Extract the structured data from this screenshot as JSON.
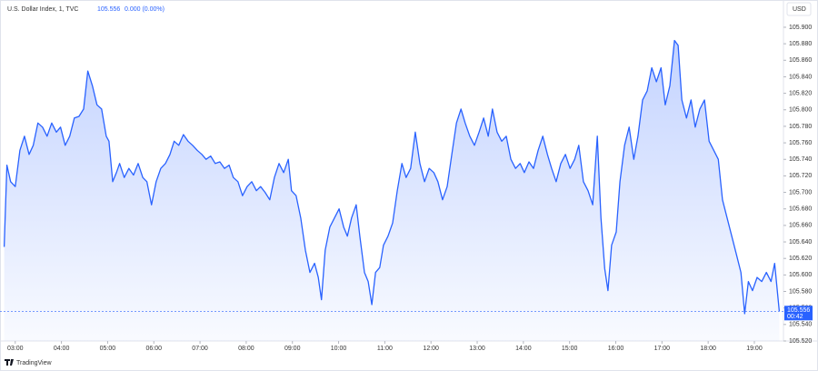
{
  "header": {
    "symbol": "U.S. Dollar Index, 1, TVC",
    "price": 105.556,
    "change": "0.000 (0.00%)",
    "currency": "USD",
    "countdown": "00:42",
    "brand": "TradingView"
  },
  "chart_data": {
    "type": "area",
    "color": "#2962ff",
    "grid": false,
    "xlim": [
      2.67,
      19.63
    ],
    "ylim": [
      105.52,
      105.933
    ],
    "xticks": [
      {
        "value": 3,
        "label": "03:00"
      },
      {
        "value": 4,
        "label": "04:00"
      },
      {
        "value": 5,
        "label": "05:00"
      },
      {
        "value": 6,
        "label": "06:00"
      },
      {
        "value": 7,
        "label": "07:00"
      },
      {
        "value": 8,
        "label": "08:00"
      },
      {
        "value": 9,
        "label": "09:00"
      },
      {
        "value": 10,
        "label": "10:00"
      },
      {
        "value": 11,
        "label": "11:00"
      },
      {
        "value": 12,
        "label": "12:00"
      },
      {
        "value": 13,
        "label": "13:00"
      },
      {
        "value": 14,
        "label": "14:00"
      },
      {
        "value": 15,
        "label": "15:00"
      },
      {
        "value": 16,
        "label": "16:00"
      },
      {
        "value": 17,
        "label": "17:00"
      },
      {
        "value": 18,
        "label": "18:00"
      },
      {
        "value": 19,
        "label": "19:00"
      }
    ],
    "yticks": [
      {
        "value": 105.52,
        "label": "105.520"
      },
      {
        "value": 105.54,
        "label": "105.540"
      },
      {
        "value": 105.56,
        "label": "105.560"
      },
      {
        "value": 105.58,
        "label": "105.580"
      },
      {
        "value": 105.6,
        "label": "105.600"
      },
      {
        "value": 105.62,
        "label": "105.620"
      },
      {
        "value": 105.64,
        "label": "105.640"
      },
      {
        "value": 105.66,
        "label": "105.660"
      },
      {
        "value": 105.68,
        "label": "105.680"
      },
      {
        "value": 105.7,
        "label": "105.700"
      },
      {
        "value": 105.72,
        "label": "105.720"
      },
      {
        "value": 105.74,
        "label": "105.740"
      },
      {
        "value": 105.76,
        "label": "105.760"
      },
      {
        "value": 105.78,
        "label": "105.780"
      },
      {
        "value": 105.8,
        "label": "105.800"
      },
      {
        "value": 105.82,
        "label": "105.820"
      },
      {
        "value": 105.84,
        "label": "105.840"
      },
      {
        "value": 105.86,
        "label": "105.860"
      },
      {
        "value": 105.88,
        "label": "105.880"
      },
      {
        "value": 105.9,
        "label": "105.900"
      }
    ],
    "x": [
      2.76,
      2.82,
      2.9,
      3.0,
      3.1,
      3.2,
      3.3,
      3.39,
      3.49,
      3.59,
      3.69,
      3.79,
      3.89,
      3.98,
      4.08,
      4.18,
      4.28,
      4.38,
      4.48,
      4.57,
      4.67,
      4.77,
      4.87,
      4.97,
      5.03,
      5.11,
      5.19,
      5.26,
      5.36,
      5.46,
      5.56,
      5.66,
      5.76,
      5.85,
      5.95,
      6.05,
      6.15,
      6.25,
      6.35,
      6.44,
      6.54,
      6.64,
      6.74,
      6.84,
      6.94,
      7.04,
      7.13,
      7.23,
      7.33,
      7.43,
      7.53,
      7.63,
      7.72,
      7.82,
      7.92,
      8.02,
      8.12,
      8.22,
      8.31,
      8.41,
      8.51,
      8.61,
      8.71,
      8.81,
      8.91,
      8.98,
      9.08,
      9.18,
      9.28,
      9.38,
      9.48,
      9.56,
      9.63,
      9.71,
      9.81,
      9.91,
      10.01,
      10.11,
      10.19,
      10.28,
      10.38,
      10.46,
      10.56,
      10.64,
      10.72,
      10.8,
      10.89,
      10.97,
      11.07,
      11.17,
      11.27,
      11.37,
      11.46,
      11.56,
      11.66,
      11.76,
      11.86,
      11.96,
      12.06,
      12.15,
      12.25,
      12.35,
      12.45,
      12.55,
      12.65,
      12.74,
      12.84,
      12.94,
      13.04,
      13.14,
      13.24,
      13.33,
      13.43,
      13.53,
      13.63,
      13.73,
      13.83,
      13.93,
      14.02,
      14.12,
      14.22,
      14.32,
      14.42,
      14.52,
      14.61,
      14.71,
      14.81,
      14.91,
      15.01,
      15.11,
      15.2,
      15.3,
      15.4,
      15.5,
      15.6,
      15.68,
      15.76,
      15.83,
      15.91,
      16.01,
      16.09,
      16.19,
      16.29,
      16.39,
      16.48,
      16.58,
      16.68,
      16.78,
      16.88,
      16.98,
      17.07,
      17.17,
      17.27,
      17.35,
      17.43,
      17.53,
      17.63,
      17.72,
      17.82,
      17.92,
      18.02,
      18.12,
      18.22,
      18.31,
      18.41,
      18.51,
      18.61,
      18.71,
      18.79,
      18.87,
      18.96,
      19.06,
      19.16,
      19.26,
      19.36,
      19.44,
      19.54
    ],
    "values": [
      105.634,
      105.733,
      105.713,
      105.707,
      105.751,
      105.768,
      105.746,
      105.757,
      105.784,
      105.779,
      105.768,
      105.784,
      105.773,
      105.779,
      105.757,
      105.768,
      105.79,
      105.792,
      105.801,
      105.847,
      105.829,
      105.806,
      105.801,
      105.768,
      105.762,
      105.713,
      105.724,
      105.735,
      105.718,
      105.729,
      105.721,
      105.735,
      105.718,
      105.713,
      105.685,
      105.713,
      105.729,
      105.735,
      105.746,
      105.762,
      105.757,
      105.77,
      105.762,
      105.757,
      105.751,
      105.746,
      105.74,
      105.744,
      105.735,
      105.737,
      105.729,
      105.733,
      105.718,
      105.713,
      105.696,
      105.707,
      105.713,
      105.702,
      105.707,
      105.7,
      105.691,
      105.718,
      105.735,
      105.724,
      105.74,
      105.702,
      105.696,
      105.669,
      105.63,
      105.603,
      105.614,
      105.597,
      105.57,
      105.63,
      105.658,
      105.669,
      105.68,
      105.658,
      105.647,
      105.669,
      105.685,
      105.647,
      105.603,
      105.592,
      105.564,
      105.603,
      105.609,
      105.636,
      105.647,
      105.663,
      105.702,
      105.735,
      105.718,
      105.729,
      105.773,
      105.735,
      105.713,
      105.729,
      105.724,
      105.713,
      105.691,
      105.707,
      105.746,
      105.784,
      105.801,
      105.784,
      105.768,
      105.757,
      105.773,
      105.79,
      105.768,
      105.801,
      105.773,
      105.762,
      105.768,
      105.74,
      105.729,
      105.735,
      105.724,
      105.737,
      105.729,
      105.751,
      105.768,
      105.746,
      105.729,
      105.713,
      105.735,
      105.746,
      105.729,
      105.74,
      105.757,
      105.713,
      105.702,
      105.685,
      105.768,
      105.669,
      105.608,
      105.581,
      105.636,
      105.652,
      105.713,
      105.757,
      105.779,
      105.74,
      105.768,
      105.812,
      105.823,
      105.851,
      105.834,
      105.851,
      105.806,
      105.829,
      105.884,
      105.878,
      105.812,
      105.79,
      105.812,
      105.779,
      105.801,
      105.812,
      105.762,
      105.751,
      105.74,
      105.691,
      105.669,
      105.647,
      105.625,
      105.603,
      105.553,
      105.592,
      105.581,
      105.597,
      105.592,
      105.603,
      105.592,
      105.614,
      105.556
    ]
  }
}
